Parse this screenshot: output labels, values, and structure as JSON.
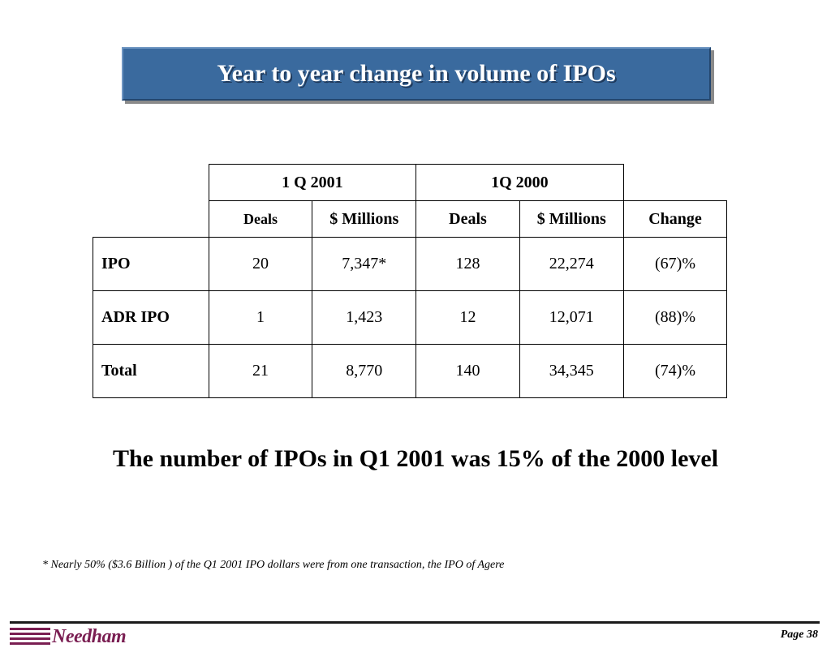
{
  "title": "Year to year change in volume of IPOs",
  "table": {
    "group_headers": [
      "1 Q 2001",
      "1Q 2000"
    ],
    "sub_headers": [
      "Deals",
      "$ Millions",
      "Deals",
      "$ Millions",
      "Change"
    ],
    "rows": [
      {
        "label": "IPO",
        "cells": [
          "20",
          "7,347*",
          "128",
          "22,274",
          "(67)%"
        ]
      },
      {
        "label": "ADR IPO",
        "cells": [
          "1",
          "1,423",
          "12",
          "12,071",
          "(88)%"
        ]
      },
      {
        "label": "Total",
        "cells": [
          "21",
          "8,770",
          "140",
          "34,345",
          "(74)%"
        ]
      }
    ]
  },
  "summary": "The number of IPOs in Q1 2001 was 15% of the 2000 level",
  "footnote": "* Nearly 50% ($3.6 Billion ) of the Q1 2001 IPO dollars were from one transaction, the IPO of Agere",
  "footer": {
    "logo_text": "Needham",
    "page_label": "Page 38",
    "brand_color": "#7a1e52"
  }
}
